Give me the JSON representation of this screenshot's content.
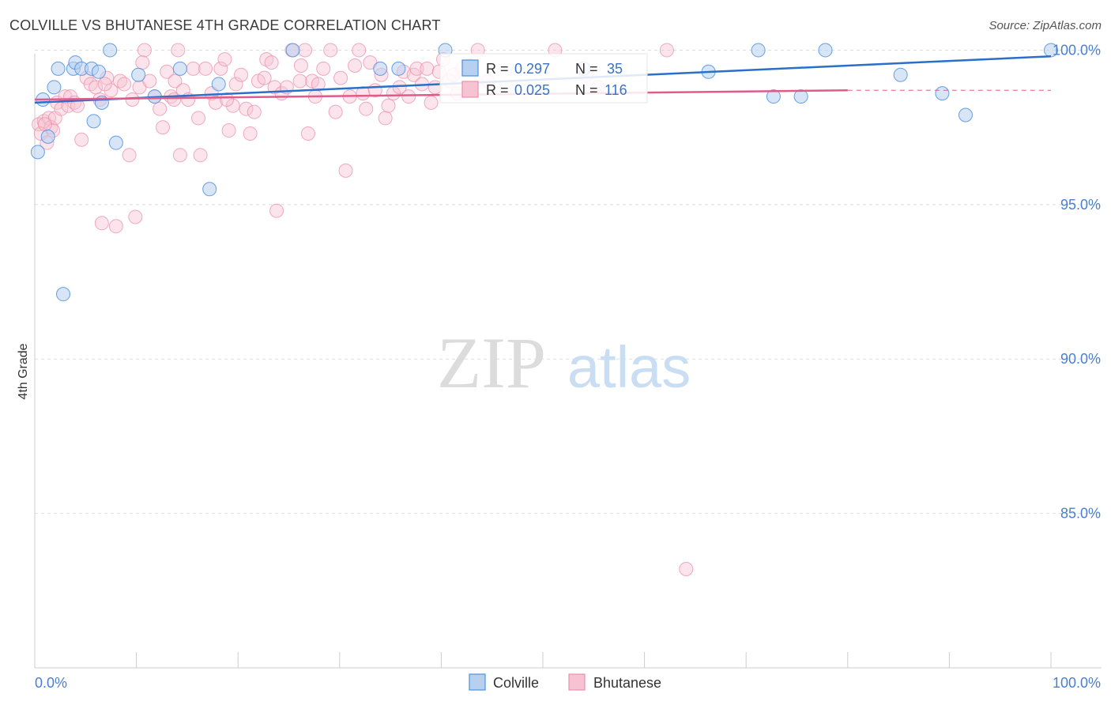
{
  "title": "COLVILLE VS BHUTANESE 4TH GRADE CORRELATION CHART",
  "source": "Source: ZipAtlas.com",
  "watermark": {
    "zip": "ZIP",
    "atlas": "atlas"
  },
  "colors": {
    "colville": "#4a90e2",
    "colville_fill": "#b8d0f0",
    "colville_line": "#2a6fc9",
    "bhutanese": "#ec8fae",
    "bhutanese_fill": "#f6c3d3",
    "bhutanese_line": "#e05a8a",
    "axis_label": "#4a7fd0",
    "grid": "#dddddd"
  },
  "legend_top": {
    "rows": [
      {
        "r_label": "R =",
        "r_value": "0.297",
        "n_label": "N =",
        "n_value": "35"
      },
      {
        "r_label": "R =",
        "r_value": "0.025",
        "n_label": "N =",
        "n_value": "116"
      }
    ]
  },
  "legend_bottom": [
    "Colville",
    "Bhutanese"
  ],
  "chart_data": {
    "type": "scatter",
    "title": "COLVILLE VS BHUTANESE 4TH GRADE CORRELATION CHART",
    "xlabel": "",
    "ylabel": "4th Grade",
    "xlim": [
      0,
      100
    ],
    "ylim": [
      80,
      100.6
    ],
    "x_tick_labels": [
      "0.0%",
      "100.0%"
    ],
    "y_ticks": [
      85,
      90,
      95,
      100
    ],
    "y_tick_labels": [
      "85.0%",
      "90.0%",
      "95.0%",
      "100.0%"
    ],
    "grid": true,
    "legend": "bottom-center",
    "series": [
      {
        "name": "Colville",
        "r": 0.297,
        "n": 35,
        "trend": {
          "x0": 0,
          "y0": 98.3,
          "x1": 100,
          "y1": 99.8
        },
        "points": [
          [
            0.3,
            96.7
          ],
          [
            0.8,
            98.4
          ],
          [
            1.3,
            97.2
          ],
          [
            1.9,
            98.8
          ],
          [
            2.3,
            99.4
          ],
          [
            2.8,
            92.1
          ],
          [
            3.8,
            99.4
          ],
          [
            4.0,
            99.6
          ],
          [
            4.6,
            99.4
          ],
          [
            5.6,
            99.4
          ],
          [
            5.8,
            97.7
          ],
          [
            6.3,
            99.3
          ],
          [
            6.6,
            98.3
          ],
          [
            7.4,
            100.0
          ],
          [
            8.0,
            97.0
          ],
          [
            10.2,
            99.2
          ],
          [
            11.8,
            98.5
          ],
          [
            14.3,
            99.4
          ],
          [
            17.2,
            95.5
          ],
          [
            18.1,
            98.9
          ],
          [
            34.0,
            99.4
          ],
          [
            35.8,
            99.4
          ],
          [
            40.4,
            100.0
          ],
          [
            54.0,
            99.4
          ],
          [
            66.3,
            99.3
          ],
          [
            72.7,
            98.5
          ],
          [
            75.4,
            98.5
          ],
          [
            71.2,
            100.0
          ],
          [
            77.8,
            100.0
          ],
          [
            85.2,
            99.2
          ],
          [
            89.3,
            98.6
          ],
          [
            91.6,
            97.9
          ],
          [
            100.0,
            100.0
          ],
          [
            25.4,
            100.0
          ],
          [
            42.8,
            99.5
          ]
        ]
      },
      {
        "name": "Bhutanese",
        "r": 0.025,
        "n": 116,
        "trend": {
          "x0": 0,
          "y0": 98.4,
          "x1": 80,
          "y1": 98.7
        },
        "trend_dashed": {
          "x0": 80,
          "y0": 98.7,
          "x1": 100,
          "y1": 98.7
        },
        "points": [
          [
            0.4,
            97.6
          ],
          [
            0.6,
            97.3
          ],
          [
            0.9,
            97.7
          ],
          [
            1.2,
            97.0
          ],
          [
            1.4,
            97.8
          ],
          [
            1.6,
            97.5
          ],
          [
            1.8,
            97.4
          ],
          [
            2.0,
            97.8
          ],
          [
            2.2,
            98.3
          ],
          [
            2.6,
            98.1
          ],
          [
            3.0,
            98.5
          ],
          [
            3.3,
            98.2
          ],
          [
            3.5,
            98.5
          ],
          [
            3.9,
            98.3
          ],
          [
            4.2,
            98.2
          ],
          [
            4.6,
            97.1
          ],
          [
            5.1,
            99.1
          ],
          [
            5.5,
            98.9
          ],
          [
            6.0,
            98.8
          ],
          [
            6.4,
            98.4
          ],
          [
            6.6,
            94.4
          ],
          [
            7.1,
            99.1
          ],
          [
            7.5,
            98.7
          ],
          [
            8.0,
            94.3
          ],
          [
            8.4,
            99.0
          ],
          [
            8.8,
            98.9
          ],
          [
            9.3,
            96.6
          ],
          [
            9.6,
            98.4
          ],
          [
            9.9,
            94.6
          ],
          [
            10.3,
            98.8
          ],
          [
            10.8,
            100.0
          ],
          [
            10.6,
            99.6
          ],
          [
            11.3,
            99.0
          ],
          [
            11.8,
            98.5
          ],
          [
            12.3,
            98.1
          ],
          [
            12.6,
            97.5
          ],
          [
            13.0,
            99.3
          ],
          [
            13.4,
            98.5
          ],
          [
            13.8,
            99.0
          ],
          [
            14.1,
            100.0
          ],
          [
            14.3,
            96.6
          ],
          [
            14.6,
            98.7
          ],
          [
            15.1,
            98.4
          ],
          [
            15.6,
            99.4
          ],
          [
            16.1,
            97.8
          ],
          [
            16.3,
            96.6
          ],
          [
            16.8,
            99.4
          ],
          [
            17.4,
            98.6
          ],
          [
            17.8,
            98.3
          ],
          [
            18.3,
            99.4
          ],
          [
            18.7,
            99.7
          ],
          [
            19.1,
            97.4
          ],
          [
            19.5,
            98.2
          ],
          [
            19.8,
            98.9
          ],
          [
            20.3,
            99.2
          ],
          [
            20.8,
            98.1
          ],
          [
            21.2,
            97.3
          ],
          [
            21.6,
            98.0
          ],
          [
            22.0,
            99.0
          ],
          [
            22.6,
            99.1
          ],
          [
            22.8,
            99.7
          ],
          [
            23.3,
            99.6
          ],
          [
            23.6,
            98.8
          ],
          [
            23.8,
            94.8
          ],
          [
            24.3,
            98.6
          ],
          [
            24.8,
            98.8
          ],
          [
            25.3,
            100.0
          ],
          [
            26.2,
            99.5
          ],
          [
            26.6,
            100.0
          ],
          [
            26.9,
            97.3
          ],
          [
            27.3,
            99.0
          ],
          [
            27.6,
            98.5
          ],
          [
            27.9,
            98.9
          ],
          [
            28.4,
            99.4
          ],
          [
            29.1,
            100.0
          ],
          [
            29.6,
            98.0
          ],
          [
            30.1,
            99.1
          ],
          [
            30.6,
            96.1
          ],
          [
            31.0,
            98.5
          ],
          [
            31.5,
            99.5
          ],
          [
            31.9,
            100.0
          ],
          [
            32.3,
            98.6
          ],
          [
            32.6,
            98.1
          ],
          [
            33.0,
            99.6
          ],
          [
            33.5,
            98.7
          ],
          [
            34.1,
            99.2
          ],
          [
            34.5,
            97.8
          ],
          [
            34.8,
            98.2
          ],
          [
            35.3,
            98.6
          ],
          [
            35.9,
            98.8
          ],
          [
            36.3,
            99.3
          ],
          [
            36.8,
            98.5
          ],
          [
            37.3,
            99.2
          ],
          [
            37.6,
            99.4
          ],
          [
            38.1,
            98.9
          ],
          [
            38.6,
            99.4
          ],
          [
            39.0,
            98.3
          ],
          [
            39.4,
            98.8
          ],
          [
            39.8,
            99.3
          ],
          [
            40.2,
            99.7
          ],
          [
            40.8,
            99.0
          ],
          [
            41.2,
            99.2
          ],
          [
            41.6,
            98.6
          ],
          [
            42.1,
            99.4
          ],
          [
            43.6,
            100.0
          ],
          [
            44.6,
            99.0
          ],
          [
            51.2,
            100.0
          ],
          [
            54.3,
            99.2
          ],
          [
            55.4,
            98.8
          ],
          [
            62.2,
            100.0
          ],
          [
            64.1,
            83.2
          ],
          [
            1.0,
            97.6
          ],
          [
            13.7,
            98.4
          ],
          [
            26.1,
            99.0
          ],
          [
            18.9,
            98.4
          ],
          [
            6.9,
            98.9
          ]
        ]
      }
    ]
  }
}
